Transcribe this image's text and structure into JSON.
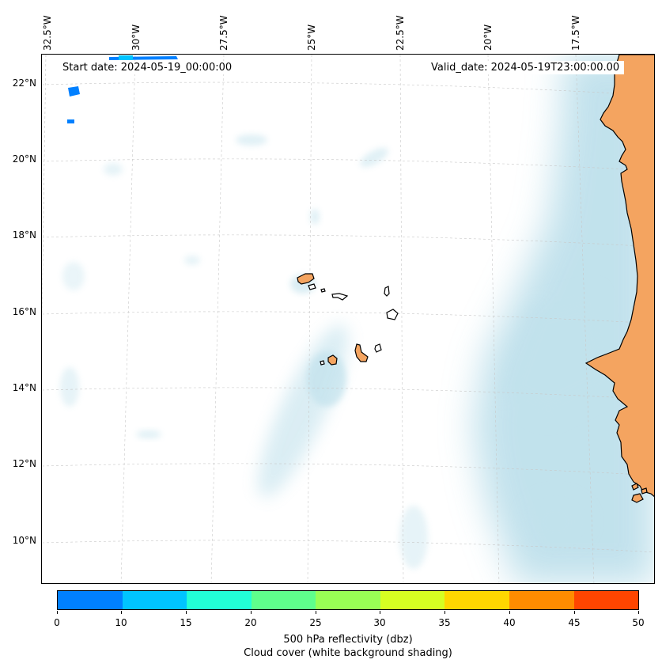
{
  "map": {
    "start_date": "Start date: 2024-05-19_00:00:00",
    "valid_date": "Valid_date: 2024-05-19T23:00:00.00",
    "lon_labels": [
      "32.5°W",
      "30°W",
      "27.5°W",
      "25°W",
      "22.5°W",
      "20°W",
      "17.5°W"
    ],
    "lat_labels": [
      "22°N",
      "20°N",
      "18°N",
      "16°N",
      "14°N",
      "12°N",
      "10°N"
    ],
    "land_color": "#f4a460",
    "cloud_color": "#add8e6",
    "coast_color": "#000000",
    "grid_color": "#c8c8c8"
  },
  "colorbar": {
    "colors": [
      "#0080ff",
      "#00c4ff",
      "#22ffd6",
      "#5fff8c",
      "#99ff55",
      "#d6ff22",
      "#ffd700",
      "#ff8c00",
      "#ff4500"
    ],
    "ticks": [
      "0",
      "10",
      "15",
      "20",
      "25",
      "30",
      "35",
      "40",
      "45",
      "50"
    ],
    "label": "500 hPa reflectivity (dbz)",
    "sublabel": "Cloud cover (white background shading)"
  }
}
